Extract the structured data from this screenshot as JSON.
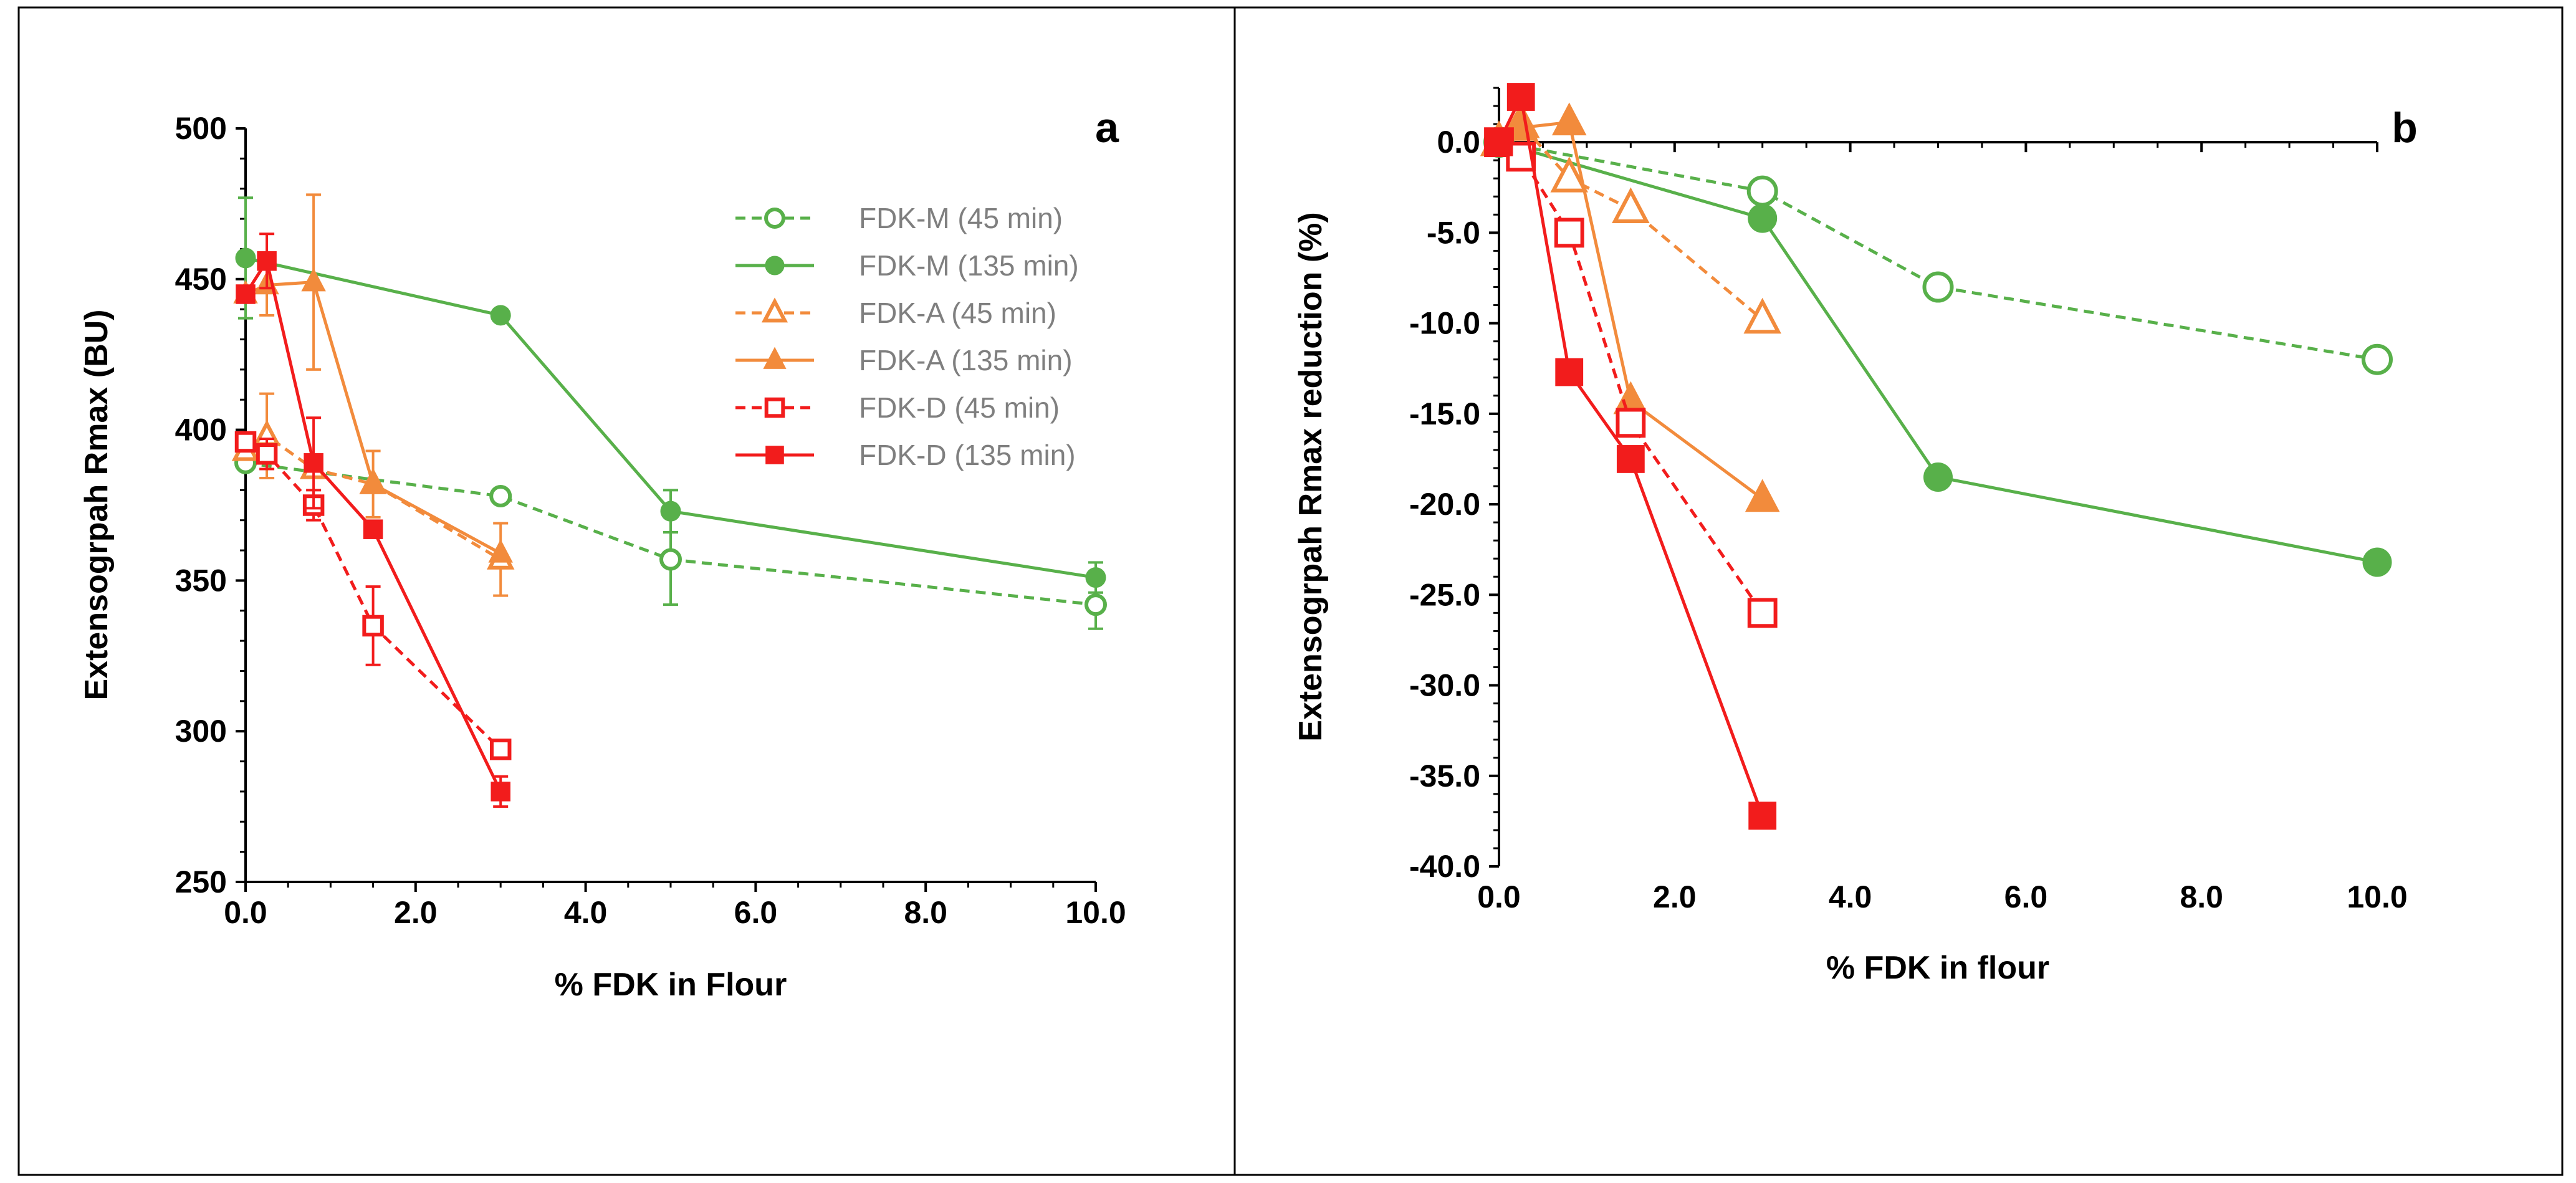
{
  "colors": {
    "green": "#58B04A",
    "orange": "#F28B3C",
    "red": "#F21C1C",
    "axis": "#000000",
    "legend_text": "#7F7F7F"
  },
  "legend": [
    {
      "label": "FDK-M (45 min)",
      "series": "m45"
    },
    {
      "label": "FDK-M (135 min)",
      "series": "m135"
    },
    {
      "label": "FDK-A (45 min)",
      "series": "a45"
    },
    {
      "label": "FDK-A (135 min)",
      "series": "a135"
    },
    {
      "label": "FDK-D (45 min)",
      "series": "d45"
    },
    {
      "label": "FDK-D (135 min)",
      "series": "d135"
    }
  ],
  "chart_data": [
    {
      "type": "line",
      "panel_label": "a",
      "title": "",
      "xlabel": "% FDK in Flour",
      "ylabel": "Extensogrpah Rmax (BU)",
      "xlim": [
        0,
        10
      ],
      "ylim": [
        250,
        500
      ],
      "xticks": [
        "0.0",
        "2.0",
        "4.0",
        "6.0",
        "8.0",
        "10.0"
      ],
      "yticks": [
        "250",
        "300",
        "350",
        "400",
        "450",
        "500"
      ],
      "series": [
        {
          "key": "m45",
          "name": "FDK-M (45 min)",
          "color": "green",
          "dashed": true,
          "marker": "circle",
          "filled": false,
          "x": [
            0,
            3,
            5,
            10
          ],
          "y": [
            389,
            378,
            357,
            342
          ],
          "err": [
            0,
            0,
            15,
            8
          ]
        },
        {
          "key": "m135",
          "name": "FDK-M (135 min)",
          "color": "green",
          "dashed": false,
          "marker": "circle",
          "filled": true,
          "x": [
            0,
            3,
            5,
            10
          ],
          "y": [
            457,
            438,
            373,
            351
          ],
          "err": [
            20,
            0,
            7,
            5
          ]
        },
        {
          "key": "a45",
          "name": "FDK-A (45 min)",
          "color": "orange",
          "dashed": true,
          "marker": "triangle",
          "filled": false,
          "x": [
            0,
            0.25,
            0.8,
            1.5,
            3
          ],
          "y": [
            393,
            398,
            387,
            382,
            357
          ],
          "err": [
            0,
            14,
            0,
            0,
            12
          ]
        },
        {
          "key": "a135",
          "name": "FDK-A (135 min)",
          "color": "orange",
          "dashed": false,
          "marker": "triangle",
          "filled": true,
          "x": [
            0,
            0.25,
            0.8,
            1.5,
            3
          ],
          "y": [
            445,
            448,
            449,
            382,
            359
          ],
          "err": [
            0,
            10,
            29,
            11,
            0
          ]
        },
        {
          "key": "d45",
          "name": "FDK-D (45 min)",
          "color": "red",
          "dashed": true,
          "marker": "square",
          "filled": false,
          "x": [
            0,
            0.25,
            0.8,
            1.5,
            3
          ],
          "y": [
            396,
            392,
            375,
            335,
            294
          ],
          "err": [
            0,
            5,
            5,
            13,
            0
          ]
        },
        {
          "key": "d135",
          "name": "FDK-D (135 min)",
          "color": "red",
          "dashed": false,
          "marker": "square",
          "filled": true,
          "x": [
            0,
            0.25,
            0.8,
            1.5,
            3
          ],
          "y": [
            445,
            456,
            389,
            367,
            280
          ],
          "err": [
            0,
            9,
            15,
            0,
            5
          ]
        }
      ]
    },
    {
      "type": "line",
      "panel_label": "b",
      "title": "",
      "xlabel": "% FDK in flour",
      "ylabel": "Extensogrpah Rmax reduction (%)",
      "xlim": [
        0,
        10
      ],
      "ylim": [
        -40,
        3
      ],
      "xticks": [
        "0.0",
        "2.0",
        "4.0",
        "6.0",
        "8.0",
        "10.0"
      ],
      "yticks": [
        "0.0",
        "-5.0",
        "-10.0",
        "-15.0",
        "-20.0",
        "-25.0",
        "-30.0",
        "-35.0",
        "-40.0"
      ],
      "series": [
        {
          "key": "m45",
          "name": "FDK-M (45 min)",
          "color": "green",
          "dashed": true,
          "marker": "circle",
          "filled": false,
          "x": [
            0,
            3,
            5,
            10
          ],
          "y": [
            0,
            -2.7,
            -8.0,
            -12.0
          ]
        },
        {
          "key": "m135",
          "name": "FDK-M (135 min)",
          "color": "green",
          "dashed": false,
          "marker": "circle",
          "filled": true,
          "x": [
            0,
            3,
            5,
            10
          ],
          "y": [
            0,
            -4.2,
            -18.5,
            -23.2
          ]
        },
        {
          "key": "a45",
          "name": "FDK-A (45 min)",
          "color": "orange",
          "dashed": true,
          "marker": "triangle",
          "filled": false,
          "x": [
            0,
            0.25,
            0.8,
            1.5,
            3
          ],
          "y": [
            0,
            1.0,
            -2.0,
            -3.7,
            -9.8
          ]
        },
        {
          "key": "a135",
          "name": "FDK-A (135 min)",
          "color": "orange",
          "dashed": false,
          "marker": "triangle",
          "filled": true,
          "x": [
            0,
            0.25,
            0.8,
            1.5,
            3
          ],
          "y": [
            0,
            0.8,
            1.1,
            -14.3,
            -19.7
          ]
        },
        {
          "key": "d45",
          "name": "FDK-D (45 min)",
          "color": "red",
          "dashed": true,
          "marker": "square",
          "filled": false,
          "x": [
            0,
            0.25,
            0.8,
            1.5,
            3
          ],
          "y": [
            0,
            -0.8,
            -5.0,
            -15.5,
            -26.0
          ]
        },
        {
          "key": "d135",
          "name": "FDK-D (135 min)",
          "color": "red",
          "dashed": false,
          "marker": "square",
          "filled": true,
          "x": [
            0,
            0.25,
            0.8,
            1.5,
            3
          ],
          "y": [
            0,
            2.5,
            -12.7,
            -17.5,
            -37.2
          ]
        }
      ]
    }
  ]
}
